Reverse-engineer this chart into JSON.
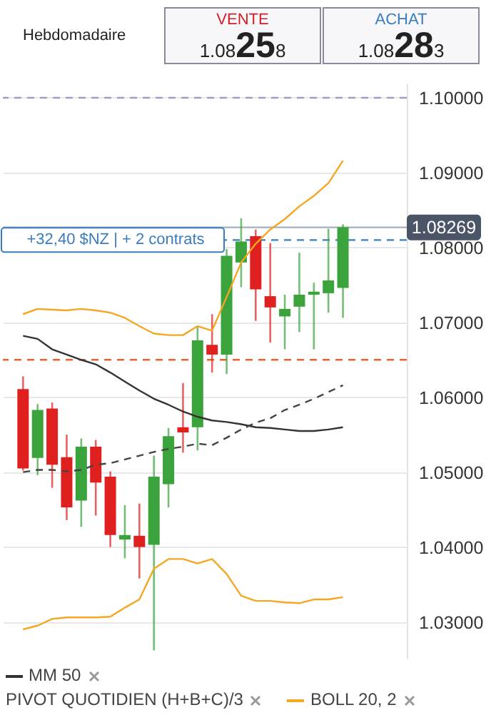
{
  "chart_data": {
    "type": "candlestick",
    "title": "Hebdomadaire",
    "categories": [
      null,
      null,
      null,
      null,
      null,
      null,
      null,
      null,
      null,
      null,
      null,
      null,
      null,
      null,
      null,
      null,
      null,
      null,
      null,
      null,
      null,
      null,
      null
    ],
    "ohlc": [
      [
        1.0611,
        1.0628,
        1.0502,
        1.0505
      ],
      [
        1.0519,
        1.0591,
        1.0496,
        1.0583
      ],
      [
        1.0585,
        1.0593,
        1.0479,
        1.051
      ],
      [
        1.052,
        1.055,
        1.0436,
        1.0453
      ],
      [
        1.0462,
        1.0545,
        1.0427,
        1.0534
      ],
      [
        1.0534,
        1.0543,
        1.0442,
        1.0486
      ],
      [
        1.0494,
        1.0501,
        1.04,
        1.0416
      ],
      [
        1.041,
        1.0456,
        1.0385,
        1.0416
      ],
      [
        1.0415,
        1.0458,
        1.0358,
        1.04
      ],
      [
        1.0403,
        1.0522,
        1.0262,
        1.0494
      ],
      [
        1.0484,
        1.0559,
        1.0453,
        1.0548
      ],
      [
        1.056,
        1.0619,
        1.0526,
        1.0553
      ],
      [
        1.056,
        1.0694,
        1.0529,
        1.0676
      ],
      [
        1.067,
        1.0711,
        1.0633,
        1.0657
      ],
      [
        1.0657,
        1.0798,
        1.0631,
        1.0789
      ],
      [
        1.078,
        1.0839,
        1.0747,
        1.0808
      ],
      [
        1.0815,
        1.0824,
        1.0702,
        1.0744
      ],
      [
        1.0735,
        1.0806,
        1.0673,
        1.072
      ],
      [
        1.0708,
        1.0737,
        1.0664,
        1.0718
      ],
      [
        1.0721,
        1.0793,
        1.0687,
        1.0737
      ],
      [
        1.0737,
        1.0753,
        1.0664,
        1.0741
      ],
      [
        1.0739,
        1.0825,
        1.0713,
        1.0756
      ],
      [
        1.0746,
        1.0831,
        1.0706,
        1.0827
      ]
    ],
    "colors": [
      "#e0201f",
      "#3ba33b",
      "#e0201f",
      "#e0201f",
      "#3ba33b",
      "#e0201f",
      "#e0201f",
      "#3ba33b",
      "#e0201f",
      "#3ba33b",
      "#3ba33b",
      "#e0201f",
      "#3ba33b",
      "#e0201f",
      "#3ba33b",
      "#3ba33b",
      "#e0201f",
      "#e0201f",
      "#3ba33b",
      "#3ba33b",
      "#3ba33b",
      "#3ba33b",
      "#3ba33b"
    ],
    "series": [
      {
        "name": "MM 50",
        "type": "line",
        "color": "#333333",
        "values": [
          1.0682,
          1.0678,
          1.0664,
          1.0657,
          1.065,
          1.0644,
          1.0633,
          1.0621,
          1.0609,
          1.0598,
          1.059,
          1.0581,
          1.0574,
          1.0569,
          1.0567,
          1.0564,
          1.056,
          1.0559,
          1.0557,
          1.0555,
          1.0555,
          1.0557,
          1.056
        ]
      },
      {
        "type": "line",
        "color": "#444444",
        "line_style": "dashed",
        "values": [
          1.05,
          1.0503,
          1.0503,
          1.0501,
          1.0503,
          1.051,
          1.0512,
          1.0517,
          1.0522,
          1.0527,
          1.0531,
          1.0534,
          1.0538,
          1.0536,
          1.0546,
          1.0557,
          1.0566,
          1.0572,
          1.0583,
          1.059,
          1.0598,
          1.0607,
          1.0616
        ]
      },
      {
        "name": "BOLL 20, 2",
        "type": "line",
        "color": "#f5a623",
        "values": [
          1.0711,
          1.0718,
          1.0717,
          1.0716,
          1.0718,
          1.0716,
          1.0713,
          1.0706,
          1.0695,
          1.0685,
          1.0683,
          1.0683,
          1.0695,
          1.0689,
          1.0734,
          1.078,
          1.0805,
          1.0824,
          1.0838,
          1.0855,
          1.0869,
          1.0886,
          1.0916
        ]
      },
      {
        "type": "line",
        "color": "#f5a623",
        "values": [
          1.029,
          1.0295,
          1.0304,
          1.0306,
          1.0306,
          1.0306,
          1.0307,
          1.0319,
          1.033,
          1.0371,
          1.0384,
          1.0384,
          1.0378,
          1.0384,
          1.0364,
          1.0335,
          1.0328,
          1.0328,
          1.0326,
          1.0325,
          1.033,
          1.033,
          1.0333
        ]
      }
    ],
    "ylim": [
      1.025,
      1.102
    ],
    "yticks": [
      {
        "value": 1.03,
        "label": "1.03000"
      },
      {
        "value": 1.04,
        "label": "1.04000"
      },
      {
        "value": 1.05,
        "label": "1.05000"
      },
      {
        "value": 1.06,
        "label": "1.06000"
      },
      {
        "value": 1.07,
        "label": "1.07000"
      },
      {
        "value": 1.08,
        "label": "1.08000"
      },
      {
        "value": 1.09,
        "label": "1.09000"
      },
      {
        "value": 1.1,
        "label": "1.10000"
      }
    ],
    "grid": "y",
    "ref_lines": [
      {
        "axis": "y",
        "value": 1.1,
        "color": "#9e9cc9",
        "line_style": "dashed"
      },
      {
        "axis": "y",
        "value": 1.065,
        "color": "#f06030",
        "line_style": "dashed"
      },
      {
        "axis": "y",
        "value": 1.08269,
        "label": "1.08269",
        "color": "#a7b0ba",
        "line_style": "solid"
      },
      {
        "axis": "y",
        "value": 1.081,
        "label": "+32,40 $NZ | + 2 contrats",
        "color": "#3a7cc0",
        "line_style": "dashed"
      }
    ],
    "annotations": [
      "VENTE",
      "1.08258",
      "ACHAT",
      "1.08283",
      "PIVOT QUOTIDIEN (H+B+C)/3"
    ],
    "legend": "bottom"
  }
}
